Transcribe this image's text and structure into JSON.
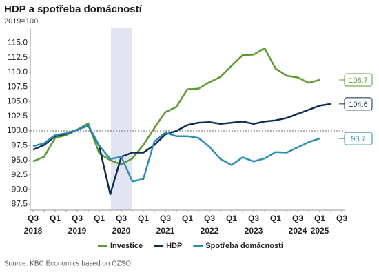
{
  "chart_data": {
    "type": "line",
    "title": "HDP a spotřeba domácností",
    "subtitle": "2019=100",
    "source": "Source: KBC Economics based on CZSO",
    "categories": [
      "Q3",
      null,
      "Q1",
      null,
      "Q3",
      null,
      "Q1",
      null,
      "Q3",
      null,
      "Q1",
      null,
      "Q3",
      null,
      "Q1",
      null,
      "Q3",
      null,
      "Q1",
      null,
      "Q3",
      null,
      "Q1",
      null,
      "Q3",
      null,
      "Q1",
      null,
      "Q3"
    ],
    "year_labels": [
      "2018",
      null,
      null,
      null,
      "2019",
      null,
      null,
      null,
      "2020",
      null,
      null,
      null,
      "2021",
      null,
      null,
      null,
      "2022",
      null,
      null,
      null,
      "2023",
      null,
      null,
      null,
      "2024",
      null,
      "2025",
      null,
      null
    ],
    "series": [
      {
        "name": "Investice",
        "color": "#5a9a2e",
        "values": [
          94.8,
          95.6,
          98.8,
          99.3,
          100.2,
          101.3,
          96.2,
          95.0,
          94.3,
          95.3,
          97.6,
          100.5,
          103.2,
          104.1,
          107.1,
          107.2,
          108.3,
          109.2,
          111.1,
          112.9,
          113.0,
          114.1,
          110.6,
          109.4,
          109.1,
          108.2,
          108.7,
          null,
          null
        ]
      },
      {
        "name": "HDP",
        "color": "#0d2c4f",
        "values": [
          96.8,
          97.6,
          99.1,
          99.5,
          100.2,
          100.9,
          97.4,
          89.2,
          95.6,
          96.3,
          96.3,
          97.6,
          99.4,
          100.0,
          101.0,
          101.4,
          101.5,
          101.2,
          101.4,
          101.6,
          101.2,
          101.6,
          101.8,
          102.2,
          102.9,
          103.6,
          104.3,
          104.6,
          null
        ]
      },
      {
        "name": "Spotřeba domácností",
        "color": "#2e8db5",
        "values": [
          97.4,
          97.9,
          99.3,
          99.6,
          100.2,
          101.0,
          97.5,
          95.2,
          95.6,
          91.4,
          91.8,
          98.2,
          99.7,
          99.1,
          99.1,
          98.8,
          97.3,
          95.2,
          94.2,
          95.5,
          94.8,
          95.3,
          96.4,
          96.3,
          97.2,
          98.1,
          98.7,
          null,
          null
        ]
      }
    ],
    "reference_line": 100,
    "ylim": [
      86.5,
      117.5
    ],
    "yticks": [
      87.5,
      {
        "value": 90,
        "label": "90.0"
      },
      92.5,
      {
        "value": 95,
        "label": "95.0"
      },
      97.5,
      {
        "value": 100,
        "label": "100.0"
      },
      102.5,
      {
        "value": 105,
        "label": "105.0"
      },
      107.5,
      {
        "value": 110,
        "label": "110.0"
      },
      112.5,
      {
        "value": 115,
        "label": "115.0"
      }
    ]
  }
}
